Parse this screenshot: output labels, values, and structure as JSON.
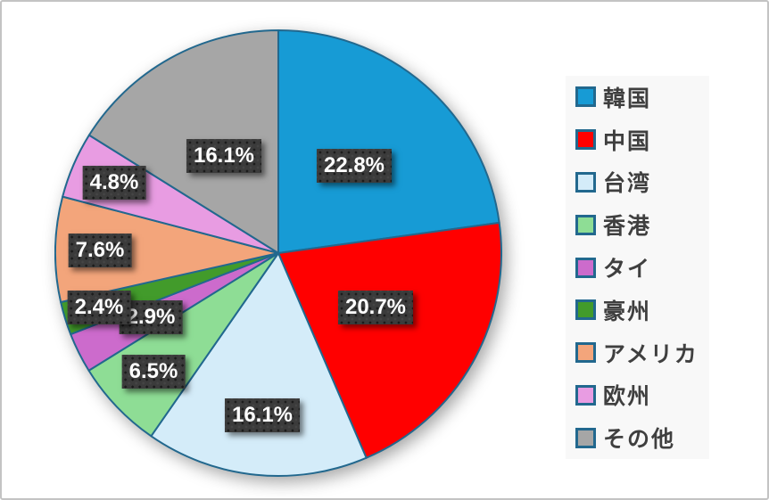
{
  "chart_data": {
    "type": "pie",
    "title": "",
    "legend_position": "right",
    "direction": "clockwise",
    "start_angle_deg": 0,
    "categories": [
      "韓国",
      "中国",
      "台湾",
      "香港",
      "タイ",
      "豪州",
      "アメリカ",
      "欧州",
      "その他"
    ],
    "values": [
      22.8,
      20.7,
      16.1,
      6.5,
      2.9,
      2.4,
      7.6,
      4.8,
      16.1
    ],
    "data_labels": [
      "22.8%",
      "20.7%",
      "16.1%",
      "6.5%",
      "2.9%",
      "2.4%",
      "7.6%",
      "4.8%",
      "16.1%"
    ],
    "colors": [
      "#179bd5",
      "#ff0000",
      "#d4ecf9",
      "#8edd95",
      "#cc6bcc",
      "#429b2b",
      "#f3a57b",
      "#e89ce2",
      "#a6a6a6"
    ],
    "slice_border_color": "#22688e",
    "label_box_color": "#3b3b3b",
    "label_text_color": "#ffffff",
    "legend_background": "#f8f8f8",
    "legend_text_color": "#3f3f3f"
  }
}
